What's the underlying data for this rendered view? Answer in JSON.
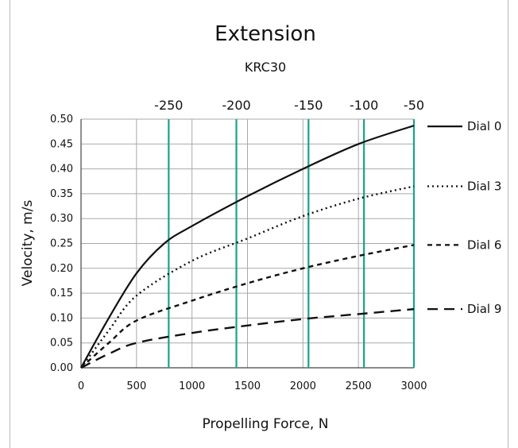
{
  "chart_data": {
    "type": "line",
    "title": "Extension",
    "subtitle": "KRC30",
    "xlabel": "Propelling Force, N",
    "ylabel": "Velocity, m/s",
    "xlim": [
      0,
      3000
    ],
    "ylim": [
      0,
      0.5
    ],
    "x_ticks": [
      "0",
      "500",
      "1000",
      "1500",
      "2000",
      "2500",
      "3000"
    ],
    "y_ticks": [
      "0.00",
      "0.05",
      "0.10",
      "0.15",
      "0.20",
      "0.25",
      "0.30",
      "0.35",
      "0.40",
      "0.45",
      "0.50"
    ],
    "grid": true,
    "legend": "right",
    "secondary_x_axis": {
      "position": "top",
      "color": "#1aa38a",
      "labels": [
        "-250",
        "-200",
        "-150",
        "-100",
        "-50"
      ],
      "primary_x": [
        790,
        1400,
        2050,
        2550,
        3000
      ]
    },
    "series": [
      {
        "name": "Dial 0",
        "style": "solid",
        "x": [
          0,
          250,
          500,
          750,
          1000,
          1500,
          2000,
          2500,
          3000
        ],
        "y": [
          0,
          0.1,
          0.19,
          0.25,
          0.285,
          0.345,
          0.4,
          0.45,
          0.487
        ]
      },
      {
        "name": "Dial 3",
        "style": "dotted",
        "x": [
          0,
          250,
          500,
          1000,
          1500,
          2000,
          2500,
          3000
        ],
        "y": [
          0,
          0.075,
          0.145,
          0.215,
          0.26,
          0.305,
          0.34,
          0.365
        ]
      },
      {
        "name": "Dial 6",
        "style": "dashed",
        "x": [
          0,
          250,
          500,
          1000,
          1500,
          2000,
          2500,
          3000
        ],
        "y": [
          0,
          0.05,
          0.095,
          0.135,
          0.17,
          0.2,
          0.225,
          0.247
        ]
      },
      {
        "name": "Dial 9",
        "style": "longdash",
        "x": [
          0,
          250,
          500,
          1000,
          1500,
          2000,
          2500,
          3000
        ],
        "y": [
          0,
          0.028,
          0.05,
          0.07,
          0.085,
          0.098,
          0.108,
          0.118
        ]
      }
    ]
  }
}
